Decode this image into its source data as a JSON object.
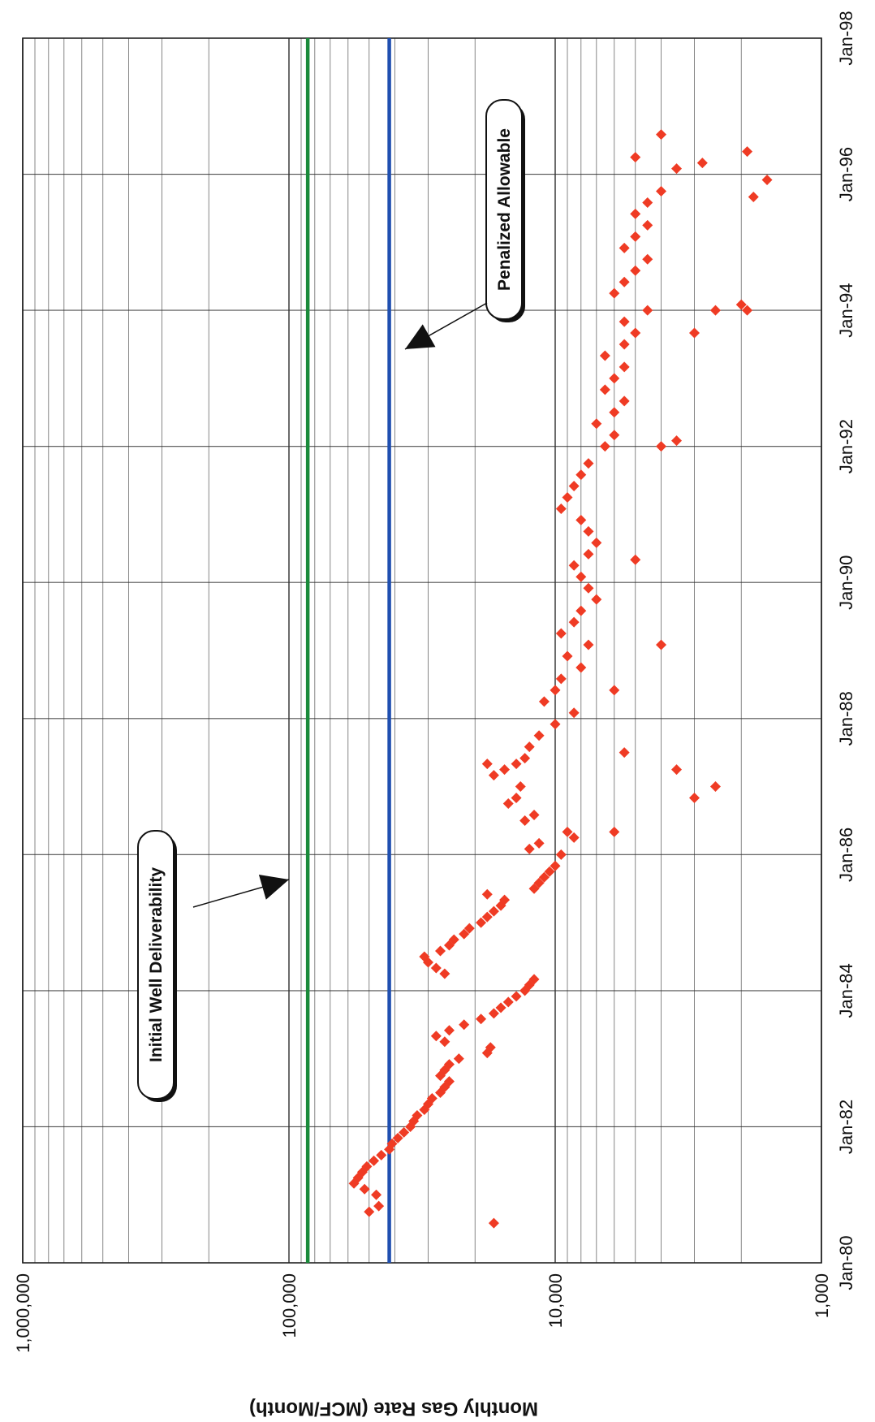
{
  "chart_data": {
    "type": "scatter",
    "title": "",
    "ylabel": "Monthly Gas Rate (MCF/Month)",
    "xlabel": "",
    "orientation": "rotated 90 degrees clockwise",
    "y_scale": "log",
    "ylim": [
      1000,
      1000000
    ],
    "y_ticks": [
      "1,000",
      "10,000",
      "100,000",
      "1,000,000"
    ],
    "xlim": [
      "1980-01",
      "1998-01"
    ],
    "x_ticks": [
      "Jan-80",
      "Jan-82",
      "Jan-84",
      "Jan-86",
      "Jan-88",
      "Jan-90",
      "Jan-92",
      "Jan-94",
      "Jan-96",
      "Jan-98"
    ],
    "grid": true,
    "colors": {
      "points": "#ef3b24",
      "initial_line": "#1a8a3a",
      "penalized_line": "#1f4fb0",
      "grid": "#333333"
    },
    "reference_lines": [
      {
        "label": "Initial Well Deliverability",
        "value": 85000
      },
      {
        "label": "Penalized Allowable",
        "value": 42000
      }
    ],
    "annotations": [
      {
        "text": "Initial Well Deliverability",
        "target": "Initial Well Deliverability"
      },
      {
        "text": "Penalized Allowable",
        "target": "Penalized Allowable"
      }
    ],
    "series": [
      {
        "values": [
          [
            "1980-10",
            50000
          ],
          [
            "1980-11",
            46000
          ],
          [
            "1981-01",
            47000
          ],
          [
            "1981-02",
            52000
          ],
          [
            "1981-03",
            57000
          ],
          [
            "1981-04",
            55000
          ],
          [
            "1981-05",
            53000
          ],
          [
            "1981-06",
            51000
          ],
          [
            "1981-07",
            48000
          ],
          [
            "1981-08",
            45000
          ],
          [
            "1981-09",
            42000
          ],
          [
            "1981-10",
            41000
          ],
          [
            "1981-11",
            39000
          ],
          [
            "1981-12",
            37000
          ],
          [
            "1982-01",
            35000
          ],
          [
            "1982-02",
            34000
          ],
          [
            "1982-03",
            33000
          ],
          [
            "1982-04",
            31000
          ],
          [
            "1982-05",
            30000
          ],
          [
            "1982-06",
            29000
          ],
          [
            "1982-07",
            27000
          ],
          [
            "1982-08",
            26000
          ],
          [
            "1982-09",
            25000
          ],
          [
            "1982-10",
            27000
          ],
          [
            "1982-11",
            26000
          ],
          [
            "1982-12",
            25000
          ],
          [
            "1983-01",
            23000
          ],
          [
            "1983-02",
            18000
          ],
          [
            "1983-03",
            17500
          ],
          [
            "1983-04",
            26000
          ],
          [
            "1983-05",
            28000
          ],
          [
            "1983-06",
            25000
          ],
          [
            "1983-07",
            22000
          ],
          [
            "1983-08",
            19000
          ],
          [
            "1983-09",
            17000
          ],
          [
            "1983-10",
            16000
          ],
          [
            "1983-11",
            15000
          ],
          [
            "1983-12",
            14000
          ],
          [
            "1984-01",
            13000
          ],
          [
            "1984-02",
            12500
          ],
          [
            "1984-03",
            12000
          ],
          [
            "1984-04",
            26000
          ],
          [
            "1984-05",
            28000
          ],
          [
            "1984-06",
            30000
          ],
          [
            "1984-07",
            31000
          ],
          [
            "1984-08",
            27000
          ],
          [
            "1984-09",
            25000
          ],
          [
            "1984-10",
            24000
          ],
          [
            "1984-11",
            22000
          ],
          [
            "1984-12",
            21000
          ],
          [
            "1985-01",
            19000
          ],
          [
            "1985-02",
            18000
          ],
          [
            "1985-03",
            17000
          ],
          [
            "1985-04",
            16000
          ],
          [
            "1985-05",
            15500
          ],
          [
            "1985-07",
            12000
          ],
          [
            "1985-08",
            11500
          ],
          [
            "1985-09",
            11000
          ],
          [
            "1985-10",
            10500
          ],
          [
            "1985-11",
            10000
          ],
          [
            "1986-01",
            9500
          ],
          [
            "1986-02",
            12500
          ],
          [
            "1986-03",
            11500
          ],
          [
            "1986-04",
            8500
          ],
          [
            "1986-05",
            9000
          ],
          [
            "1986-07",
            13000
          ],
          [
            "1986-08",
            12000
          ],
          [
            "1986-10",
            15000
          ],
          [
            "1986-11",
            14000
          ],
          [
            "1987-01",
            13500
          ],
          [
            "1987-03",
            17000
          ],
          [
            "1987-04",
            15500
          ],
          [
            "1987-05",
            14000
          ],
          [
            "1987-06",
            13000
          ],
          [
            "1987-08",
            12500
          ],
          [
            "1987-10",
            11500
          ],
          [
            "1987-12",
            10000
          ],
          [
            "1988-02",
            8500
          ],
          [
            "1988-04",
            11000
          ],
          [
            "1988-06",
            10000
          ],
          [
            "1988-08",
            9500
          ],
          [
            "1988-10",
            8000
          ],
          [
            "1988-12",
            9000
          ],
          [
            "1989-02",
            7500
          ],
          [
            "1989-04",
            9500
          ],
          [
            "1989-06",
            8500
          ],
          [
            "1989-08",
            8000
          ],
          [
            "1989-10",
            7000
          ],
          [
            "1989-12",
            7500
          ],
          [
            "1990-02",
            8000
          ],
          [
            "1990-04",
            8500
          ],
          [
            "1990-06",
            7500
          ],
          [
            "1990-08",
            7000
          ],
          [
            "1990-10",
            7500
          ],
          [
            "1990-12",
            8000
          ],
          [
            "1991-02",
            9500
          ],
          [
            "1991-04",
            9000
          ],
          [
            "1991-06",
            8500
          ],
          [
            "1991-08",
            8000
          ],
          [
            "1991-10",
            7500
          ],
          [
            "1992-01",
            6500
          ],
          [
            "1992-03",
            6000
          ],
          [
            "1992-05",
            7000
          ],
          [
            "1992-07",
            6000
          ],
          [
            "1992-09",
            5500
          ],
          [
            "1992-11",
            6500
          ],
          [
            "1993-01",
            6000
          ],
          [
            "1993-03",
            5500
          ],
          [
            "1993-05",
            6500
          ],
          [
            "1993-07",
            5500
          ],
          [
            "1993-09",
            5000
          ],
          [
            "1993-11",
            5500
          ],
          [
            "1994-01",
            4500
          ],
          [
            "1994-04",
            6000
          ],
          [
            "1994-06",
            5500
          ],
          [
            "1994-08",
            5000
          ],
          [
            "1994-10",
            4500
          ],
          [
            "1994-12",
            5500
          ],
          [
            "1995-02",
            5000
          ],
          [
            "1995-04",
            4500
          ],
          [
            "1995-06",
            5000
          ],
          [
            "1995-08",
            4500
          ],
          [
            "1995-10",
            4000
          ],
          [
            "1996-02",
            3500
          ],
          [
            "1996-04",
            5000
          ],
          [
            "1985-06",
            18000
          ],
          [
            "1986-05",
            6000
          ],
          [
            "1987-05",
            18000
          ],
          [
            "1987-07",
            5500
          ],
          [
            "1987-04",
            3500
          ],
          [
            "1986-11",
            3000
          ],
          [
            "1987-01",
            2500
          ],
          [
            "1989-02",
            4000
          ],
          [
            "1988-06",
            6000
          ],
          [
            "1990-05",
            5000
          ],
          [
            "1992-01",
            4000
          ],
          [
            "1992-02",
            3500
          ],
          [
            "1993-09",
            3000
          ],
          [
            "1994-01",
            2500
          ],
          [
            "1994-02",
            2000
          ],
          [
            "1994-01",
            1900
          ],
          [
            "1995-09",
            1800
          ],
          [
            "1995-12",
            1600
          ],
          [
            "1996-05",
            1900
          ],
          [
            "1996-03",
            2800
          ],
          [
            "1980-08",
            17000
          ],
          [
            "1996-08",
            4000
          ]
        ]
      }
    ]
  }
}
